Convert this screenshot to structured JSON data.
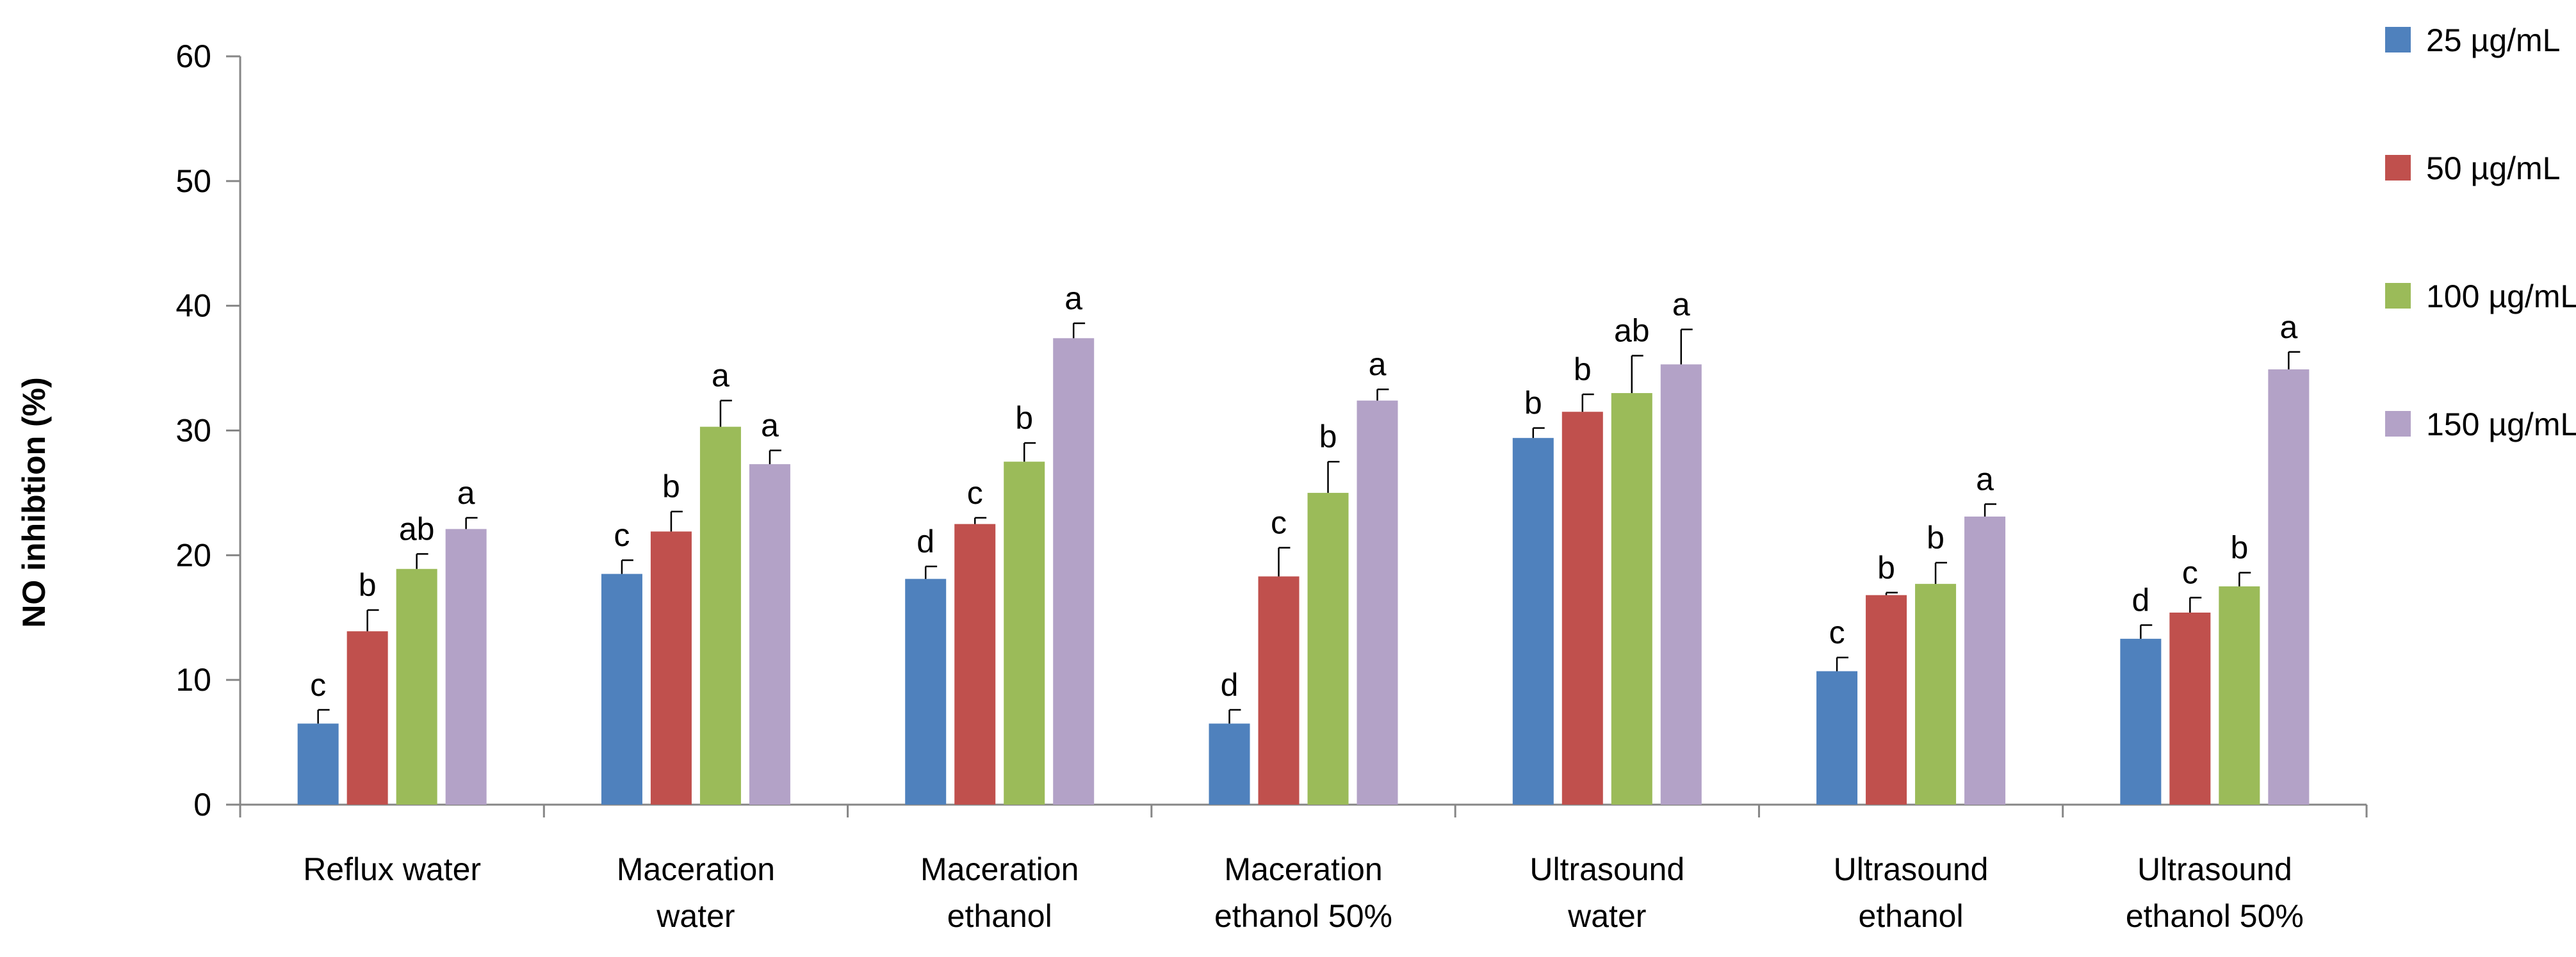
{
  "chart_data": {
    "type": "bar",
    "title": "",
    "xlabel": "",
    "ylabel": "NO inhibtion (%)",
    "ylim": [
      0,
      60
    ],
    "yticks": [
      "0",
      "10",
      "20",
      "30",
      "40",
      "50",
      "60"
    ],
    "grid": false,
    "legend_position": "top-right",
    "categories": [
      [
        "Reflux water"
      ],
      [
        "Maceration",
        "water"
      ],
      [
        "Maceration",
        "ethanol"
      ],
      [
        "Maceration",
        "ethanol 50%"
      ],
      [
        "Ultrasound",
        "water"
      ],
      [
        "Ultrasound",
        "ethanol"
      ],
      [
        "Ultrasound",
        "ethanol 50%"
      ]
    ],
    "series": [
      {
        "name": "25 µg/mL",
        "color": "#4f81bd",
        "values": [
          6.5,
          18.5,
          18.1,
          6.5,
          29.4,
          10.7,
          13.3
        ],
        "errors": [
          1.1,
          1.1,
          1.0,
          1.1,
          0.8,
          1.1,
          1.1
        ],
        "labels": [
          "c",
          "c",
          "d",
          "d",
          "b",
          "c",
          "d"
        ]
      },
      {
        "name": "50 µg/mL",
        "color": "#c0504d",
        "values": [
          13.9,
          21.9,
          22.5,
          18.3,
          31.5,
          16.8,
          15.4
        ],
        "errors": [
          1.7,
          1.6,
          0.5,
          2.3,
          1.4,
          0.2,
          1.2
        ],
        "labels": [
          "b",
          "b",
          "c",
          "c",
          "b",
          "b",
          "c"
        ]
      },
      {
        "name": "100 µg/mL",
        "color": "#9bbb59",
        "values": [
          18.9,
          30.3,
          27.5,
          25.0,
          33.0,
          17.7,
          17.5
        ],
        "errors": [
          1.2,
          2.1,
          1.5,
          2.5,
          3.0,
          1.7,
          1.1
        ],
        "labels": [
          "ab",
          "a",
          "b",
          "b",
          "ab",
          "b",
          "b"
        ]
      },
      {
        "name": "150 µg/mL",
        "color": "#b3a2c7",
        "values": [
          22.1,
          27.3,
          37.4,
          32.4,
          35.3,
          23.1,
          34.9
        ],
        "errors": [
          0.9,
          1.1,
          1.2,
          0.9,
          2.8,
          1.0,
          1.4
        ],
        "labels": [
          "a",
          "a",
          "a",
          "a",
          "a",
          "a",
          "a"
        ]
      }
    ]
  }
}
